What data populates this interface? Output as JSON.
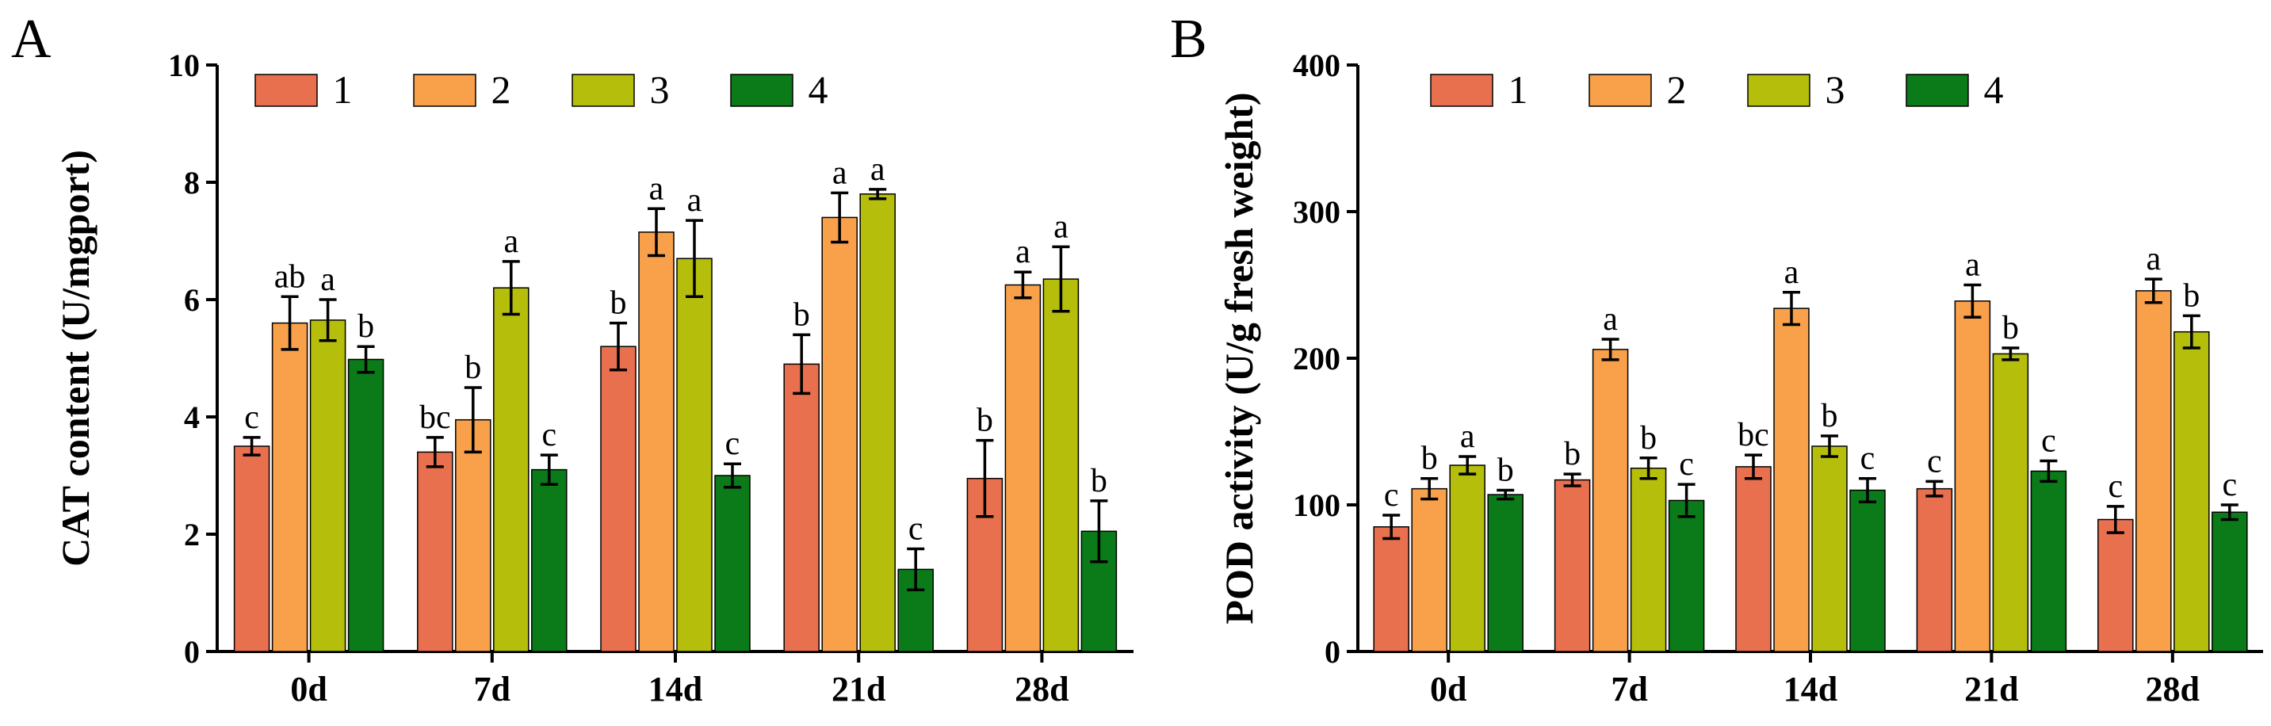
{
  "colors": {
    "1": "#E8704E",
    "2": "#F9A04A",
    "3": "#B5BE0B",
    "4": "#0B7A18"
  },
  "chart_data": [
    {
      "type": "bar",
      "panel": "A",
      "categories": [
        "0d",
        "7d",
        "14d",
        "21d",
        "28d"
      ],
      "series": [
        {
          "name": "1",
          "values": [
            3.5,
            3.4,
            5.2,
            4.9,
            2.95
          ],
          "errors": [
            0.15,
            0.25,
            0.4,
            0.5,
            0.65
          ],
          "labels": [
            "c",
            "bc",
            "b",
            "b",
            "b"
          ]
        },
        {
          "name": "2",
          "values": [
            5.6,
            3.95,
            7.15,
            7.4,
            6.25
          ],
          "errors": [
            0.45,
            0.55,
            0.4,
            0.42,
            0.22
          ],
          "labels": [
            "ab",
            "b",
            "a",
            "a",
            "a"
          ]
        },
        {
          "name": "3",
          "values": [
            5.65,
            6.2,
            6.7,
            7.8,
            6.35
          ],
          "errors": [
            0.35,
            0.45,
            0.65,
            0.08,
            0.55
          ],
          "labels": [
            "a",
            "a",
            "a",
            "a",
            "a"
          ]
        },
        {
          "name": "4",
          "values": [
            4.98,
            3.1,
            3.0,
            1.4,
            2.05
          ],
          "errors": [
            0.22,
            0.25,
            0.2,
            0.35,
            0.52
          ],
          "labels": [
            "b",
            "c",
            "c",
            "c",
            "b"
          ]
        }
      ],
      "xlabel": "",
      "ylabel": "CAT content (U/mgport)",
      "ylim": [
        0,
        10
      ],
      "yticks": [
        "0",
        "2",
        "4",
        "6",
        "8",
        "10"
      ],
      "legend_position": "top-left",
      "grid": false
    },
    {
      "type": "bar",
      "panel": "B",
      "categories": [
        "0d",
        "7d",
        "14d",
        "21d",
        "28d"
      ],
      "series": [
        {
          "name": "1",
          "values": [
            85,
            117,
            126,
            111,
            90
          ],
          "errors": [
            8,
            4,
            8,
            5,
            9
          ],
          "labels": [
            "c",
            "b",
            "bc",
            "c",
            "c"
          ]
        },
        {
          "name": "2",
          "values": [
            111,
            206,
            234,
            239,
            246
          ],
          "errors": [
            7,
            7,
            11,
            11,
            8
          ],
          "labels": [
            "b",
            "a",
            "a",
            "a",
            "a"
          ]
        },
        {
          "name": "3",
          "values": [
            127,
            125,
            140,
            203,
            218
          ],
          "errors": [
            6,
            7,
            7,
            4,
            11
          ],
          "labels": [
            "a",
            "b",
            "b",
            "b",
            "b"
          ]
        },
        {
          "name": "4",
          "values": [
            107,
            103,
            110,
            123,
            95
          ],
          "errors": [
            3,
            11,
            8,
            7,
            5
          ],
          "labels": [
            "b",
            "c",
            "c",
            "c",
            "c"
          ]
        }
      ],
      "xlabel": "",
      "ylabel": "POD activity (U/g fresh weight)",
      "ylim": [
        0,
        400
      ],
      "yticks": [
        "0",
        "100",
        "200",
        "300",
        "400"
      ],
      "legend_position": "top-left",
      "grid": false
    }
  ]
}
